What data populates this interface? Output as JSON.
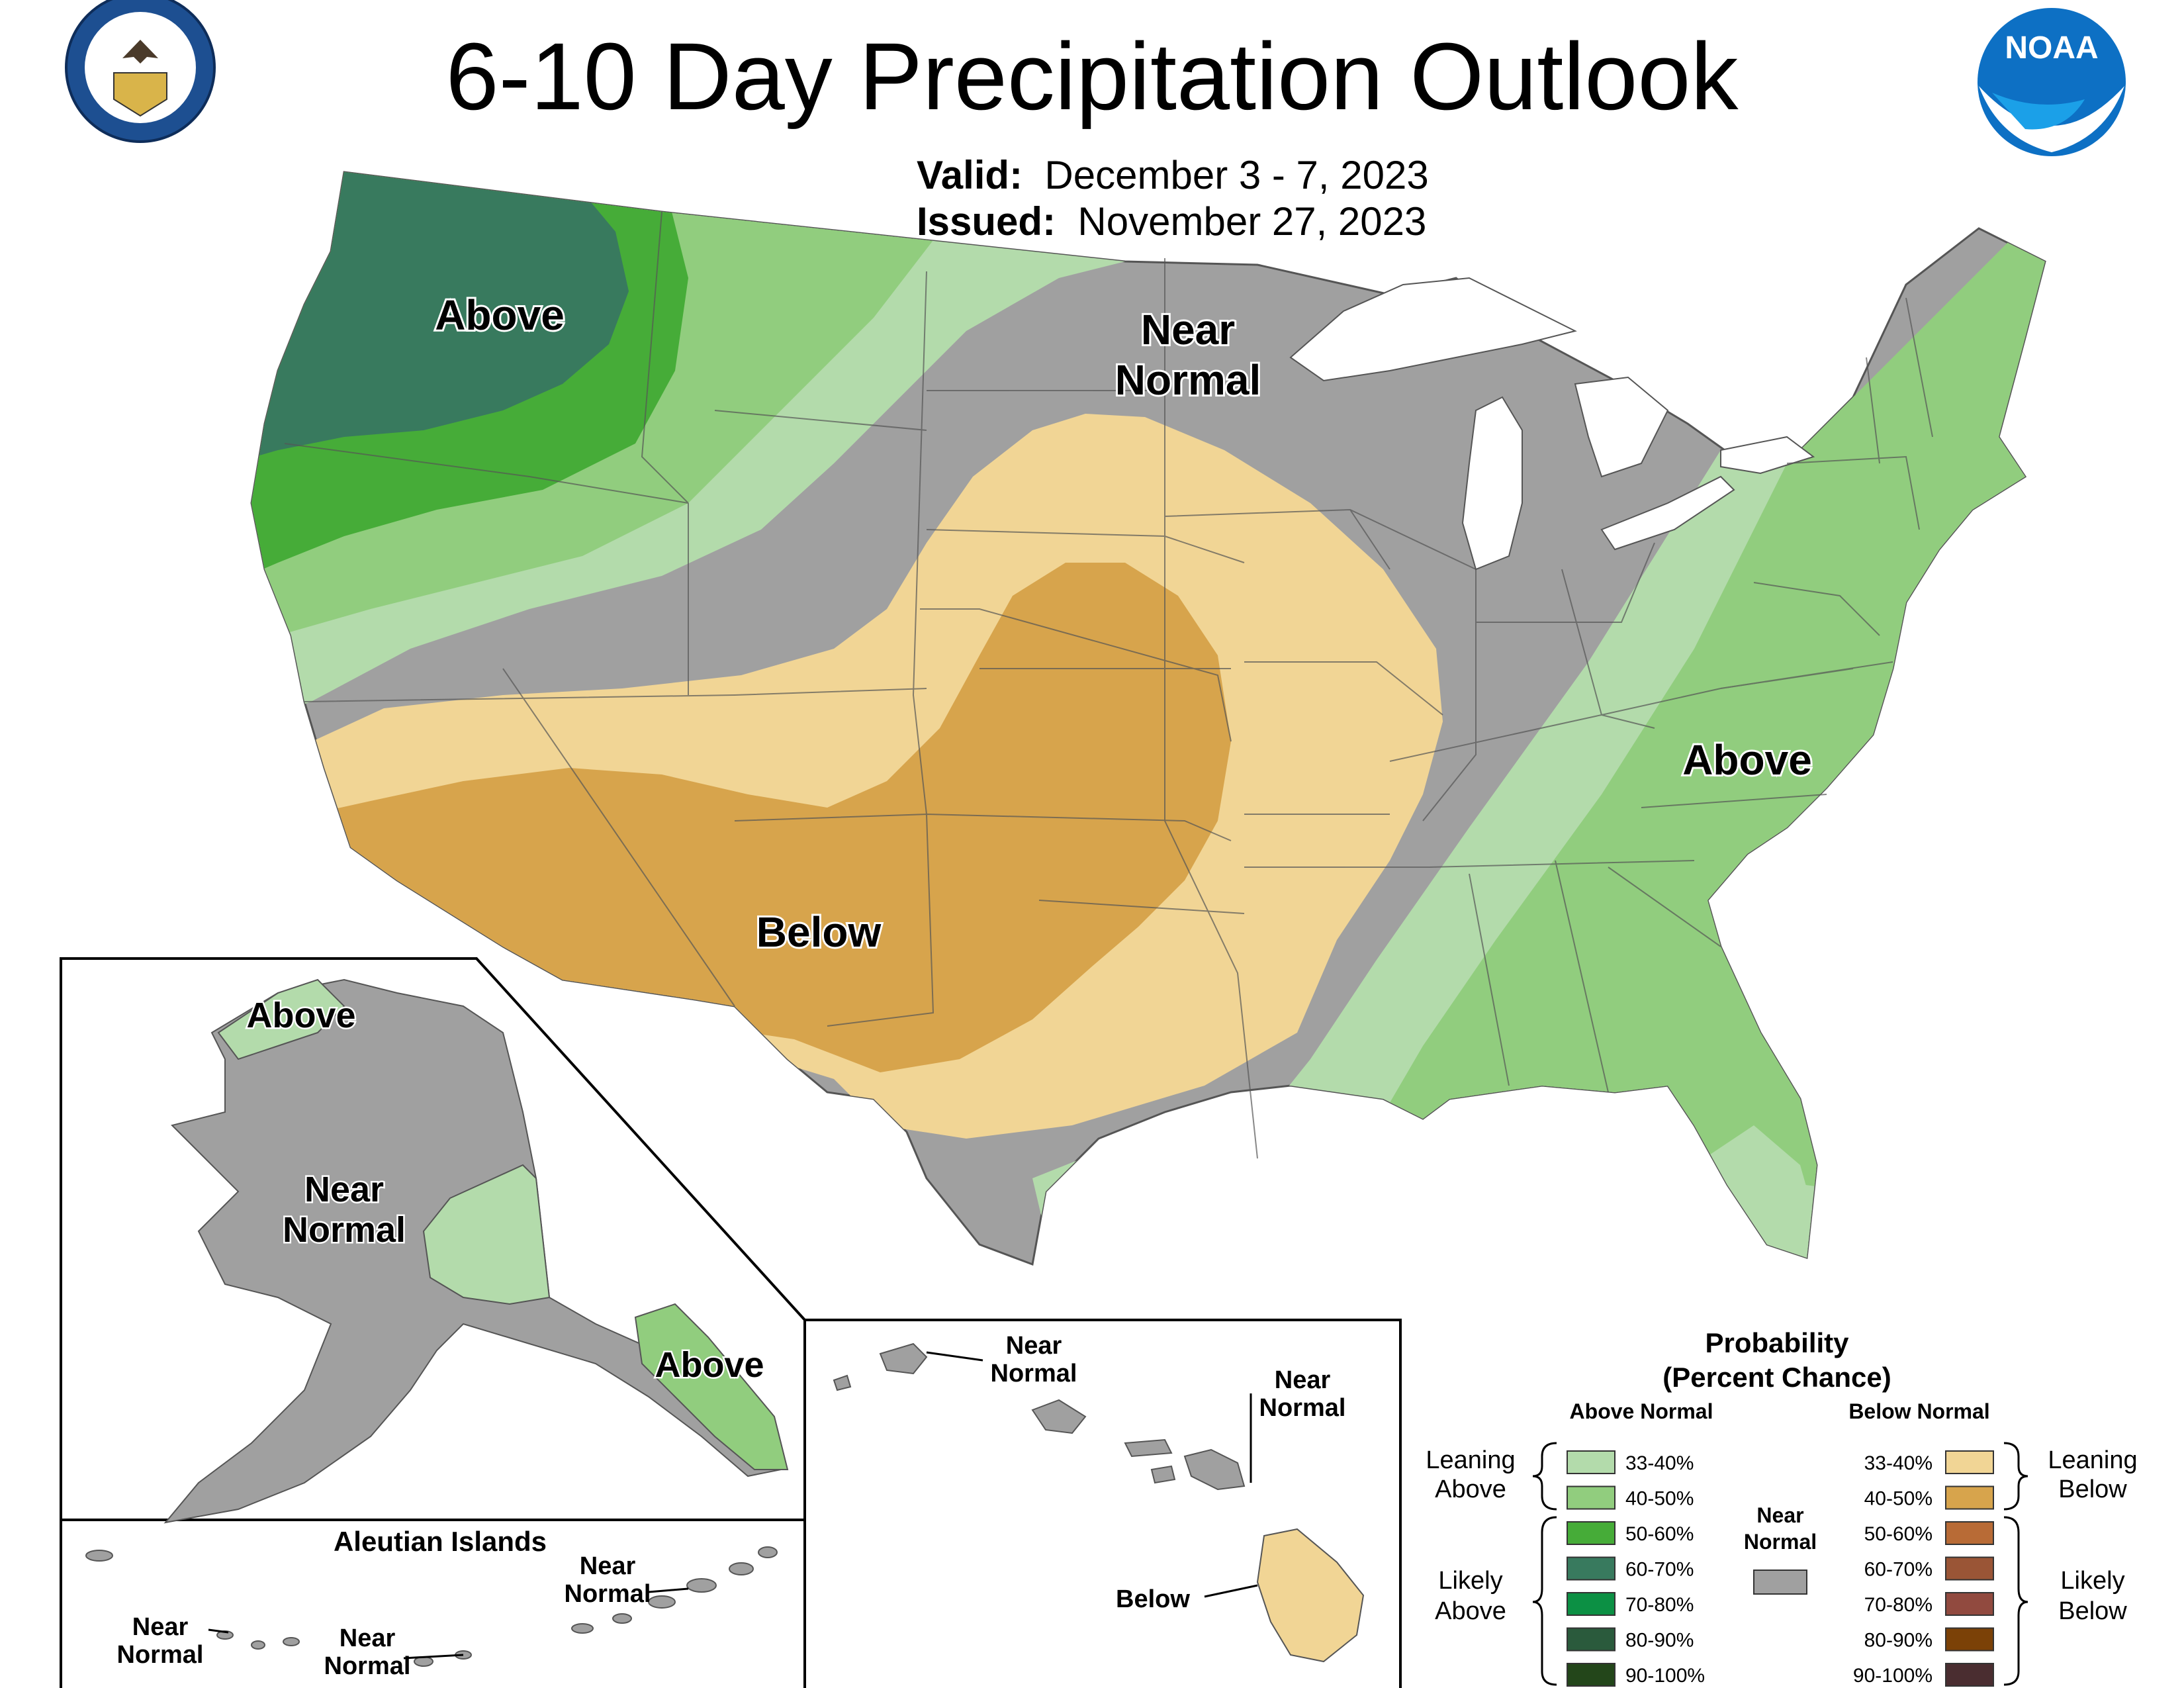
{
  "title": "6-10 Day Precipitation Outlook",
  "valid": {
    "label": "Valid:",
    "value": "December 3 - 7, 2023"
  },
  "issued": {
    "label": "Issued:",
    "value": "November 27, 2023"
  },
  "logos": {
    "commerce": "department-of-commerce-seal",
    "noaa": "NOAA"
  },
  "map_labels": {
    "conus_above_nw": "Above",
    "conus_near_normal_1": "Near",
    "conus_near_normal_2": "Normal",
    "conus_above_se": "Above",
    "conus_below": "Below",
    "alaska_above_n": "Above",
    "alaska_near_1": "Near",
    "alaska_near_2": "Normal",
    "alaska_above_se": "Above",
    "aleutian_title": "Aleutian Islands",
    "aleutian_near_a1": "Near",
    "aleutian_near_a2": "Normal",
    "aleutian_near_b1": "Near",
    "aleutian_near_b2": "Normal",
    "aleutian_near_c1": "Near",
    "aleutian_near_c2": "Normal",
    "hawaii_near_a1": "Near",
    "hawaii_near_a2": "Normal",
    "hawaii_near_b1": "Near",
    "hawaii_near_b2": "Normal",
    "hawaii_below": "Below"
  },
  "legend": {
    "title_1": "Probability",
    "title_2": "(Percent Chance)",
    "above_header": "Above Normal",
    "below_header": "Below Normal",
    "near_1": "Near",
    "near_2": "Normal",
    "leaning_above_1": "Leaning",
    "leaning_above_2": "Above",
    "likely_above_1": "Likely",
    "likely_above_2": "Above",
    "leaning_below_1": "Leaning",
    "leaning_below_2": "Below",
    "likely_below_1": "Likely",
    "likely_below_2": "Below",
    "above_bins": [
      {
        "label": "33-40%",
        "color": "#b3dbab"
      },
      {
        "label": "40-50%",
        "color": "#91cd7e"
      },
      {
        "label": "50-60%",
        "color": "#46ac38"
      },
      {
        "label": "60-70%",
        "color": "#387a5e"
      },
      {
        "label": "70-80%",
        "color": "#0c9044"
      },
      {
        "label": "80-90%",
        "color": "#2a5a3c"
      },
      {
        "label": "90-100%",
        "color": "#23461a"
      }
    ],
    "below_bins": [
      {
        "label": "33-40%",
        "color": "#f1d595"
      },
      {
        "label": "40-50%",
        "color": "#d7a44c"
      },
      {
        "label": "50-60%",
        "color": "#b86b36"
      },
      {
        "label": "60-70%",
        "color": "#9a5536"
      },
      {
        "label": "70-80%",
        "color": "#914a3f"
      },
      {
        "label": "80-90%",
        "color": "#7b4107"
      },
      {
        "label": "90-100%",
        "color": "#4a2d30"
      }
    ],
    "near_color": "#a0a0a0"
  }
}
